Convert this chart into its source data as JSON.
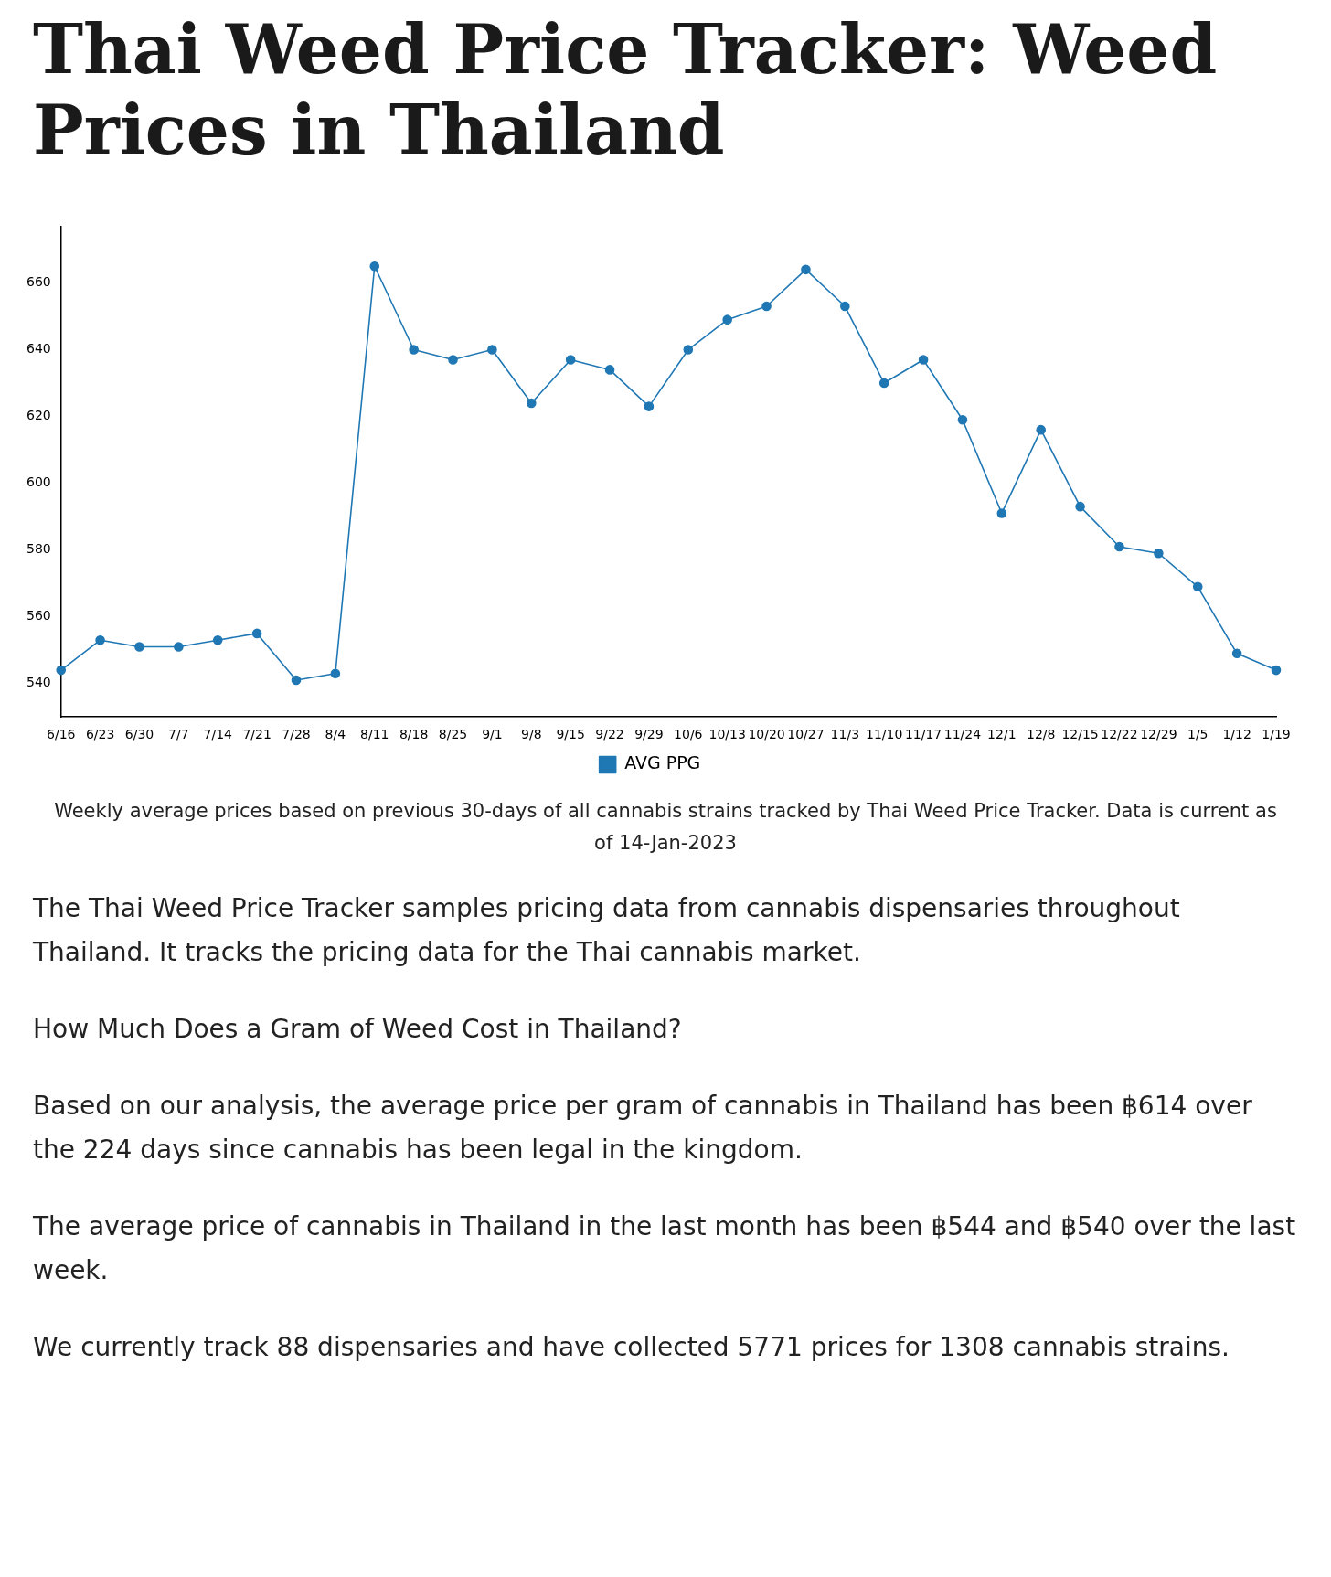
{
  "chart_data": {
    "type": "line",
    "title": "Thai Weed Price Tracker: Weed Prices in Thailand",
    "categories": [
      "6/16",
      "6/23",
      "6/30",
      "7/7",
      "7/14",
      "7/21",
      "7/28",
      "8/4",
      "8/11",
      "8/18",
      "8/25",
      "9/1",
      "9/8",
      "9/15",
      "9/22",
      "9/29",
      "10/6",
      "10/13",
      "10/20",
      "10/27",
      "11/3",
      "11/10",
      "11/17",
      "11/24",
      "12/1",
      "12/8",
      "12/15",
      "12/22",
      "12/29",
      "1/5",
      "1/12",
      "1/19"
    ],
    "series": [
      {
        "name": "AVG PPG",
        "color": "#1f77b4",
        "values": [
          544,
          553,
          551,
          551,
          553,
          555,
          541,
          543,
          665,
          640,
          637,
          640,
          624,
          637,
          634,
          623,
          640,
          649,
          653,
          664,
          653,
          630,
          637,
          619,
          591,
          616,
          593,
          581,
          579,
          569,
          549,
          544
        ]
      }
    ],
    "ylim": [
      530,
      677
    ],
    "yticks": [
      540,
      560,
      580,
      600,
      620,
      640,
      660
    ],
    "grid": false,
    "legend": "bottom",
    "marker": "circle",
    "line_style": "solid",
    "annotations": [
      "Weekly average prices based on previous 30-days of all cannabis strains tracked by Thai Weed Price Tracker. Data is current as of 14-Jan-2023",
      "The Thai Weed Price Tracker samples pricing data from cannabis dispensaries throughout Thailand. It tracks the pricing data for the Thai cannabis market.",
      "How Much Does a Gram of Weed Cost in Thailand?",
      "Based on our analysis, the average price per gram of cannabis in Thailand has been ฿614 over the 224 days since cannabis has been legal in the kingdom.",
      "The average price of cannabis in Thailand in the last month has been ฿544 and ฿540 over the last week.",
      "We currently track 88 dispensaries and have collected 5771 prices for 1308 cannabis strains."
    ]
  }
}
